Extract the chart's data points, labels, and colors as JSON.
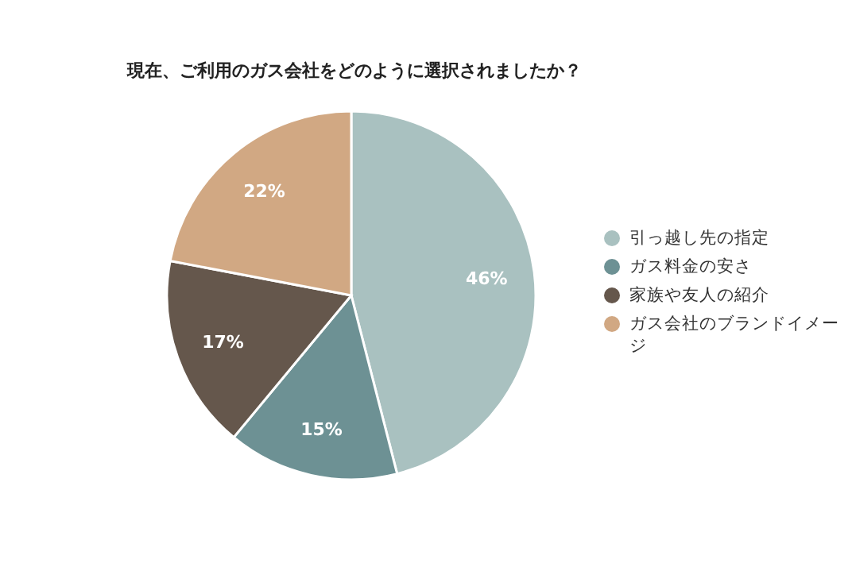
{
  "chart_data": {
    "type": "pie",
    "title": "現在、ご利用のガス会社をどのように選択されましたか？",
    "categories": [
      "引っ越し先の指定",
      "ガス料金の安さ",
      "家族や友人の紹介",
      "ガス会社のブランドイメージ"
    ],
    "values": [
      46,
      15,
      17,
      22
    ],
    "value_labels": [
      "46%",
      "15%",
      "17%",
      "22%"
    ],
    "colors": [
      "#a9c1c0",
      "#6d9194",
      "#65574c",
      "#d1a883"
    ],
    "legend": "right"
  }
}
